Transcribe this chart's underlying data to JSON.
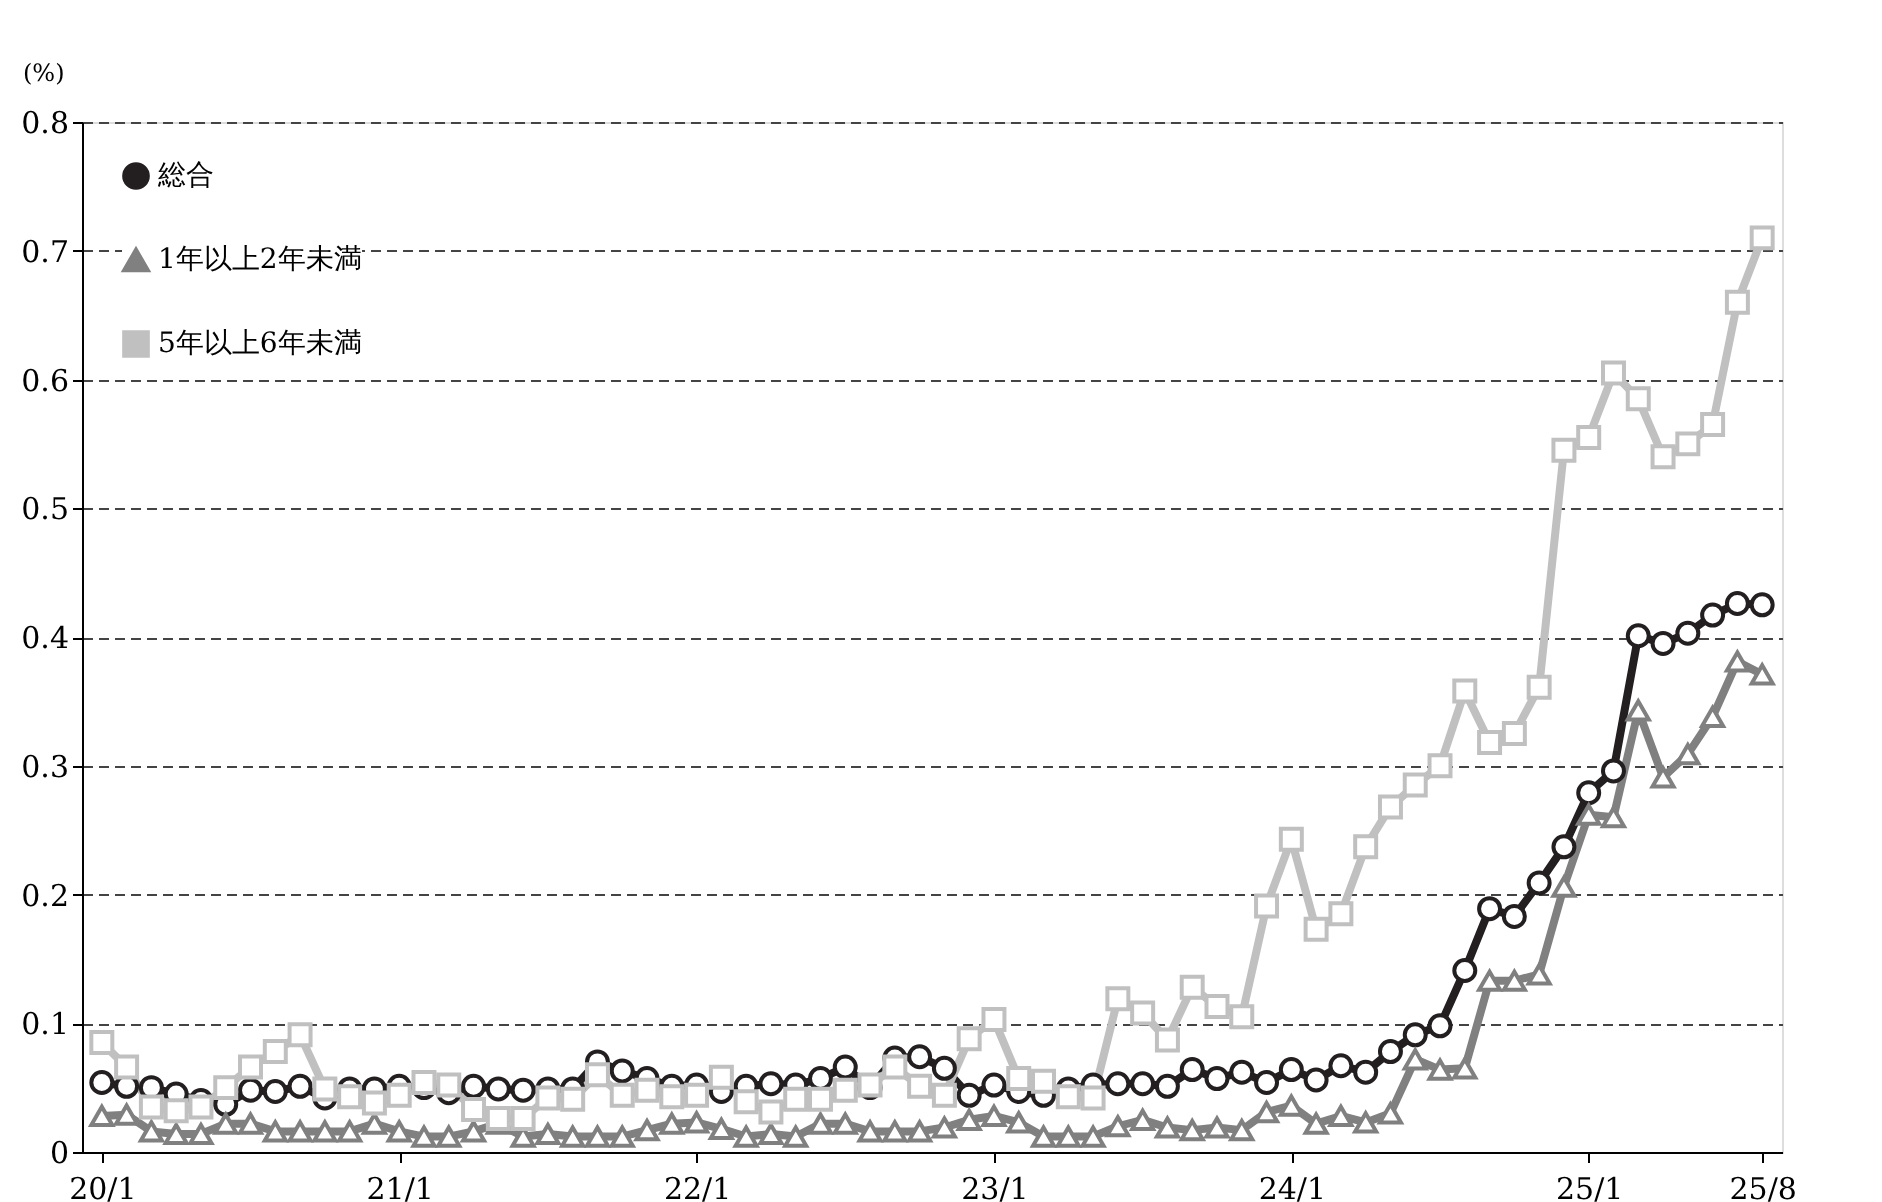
{
  "chart_data": {
    "type": "line",
    "ylabel": "(%)",
    "categories": [
      "20/1",
      null,
      null,
      null,
      null,
      null,
      null,
      null,
      null,
      null,
      null,
      null,
      "21/1",
      null,
      null,
      null,
      null,
      null,
      null,
      null,
      null,
      null,
      null,
      null,
      "22/1",
      null,
      null,
      null,
      null,
      null,
      null,
      null,
      null,
      null,
      null,
      null,
      "23/1",
      null,
      null,
      null,
      null,
      null,
      null,
      null,
      null,
      null,
      null,
      null,
      "24/1",
      null,
      null,
      null,
      null,
      null,
      null,
      null,
      null,
      null,
      null,
      null,
      "25/1",
      null,
      null,
      null,
      null,
      null,
      null,
      "25/8"
    ],
    "series": [
      {
        "name": "総合",
        "color": "#231f20",
        "marker": "circle",
        "values": [
          0.054,
          0.051,
          0.05,
          0.045,
          0.04,
          0.037,
          0.048,
          0.047,
          0.051,
          0.042,
          0.049,
          0.049,
          0.051,
          0.05,
          0.046,
          0.051,
          0.049,
          0.048,
          0.049,
          0.049,
          0.07,
          0.063,
          0.057,
          0.051,
          0.052,
          0.047,
          0.051,
          0.053,
          0.052,
          0.057,
          0.066,
          0.05,
          0.073,
          0.074,
          0.065,
          0.044,
          0.052,
          0.047,
          0.044,
          0.049,
          0.052,
          0.053,
          0.053,
          0.051,
          0.064,
          0.057,
          0.062,
          0.054,
          0.064,
          0.056,
          0.067,
          0.062,
          0.078,
          0.091,
          0.098,
          0.141,
          0.189,
          0.183,
          0.209,
          0.237,
          0.279,
          0.296,
          0.401,
          0.395,
          0.403,
          0.417,
          0.426,
          0.425
        ]
      },
      {
        "name": "1年以上2年未満",
        "color": "#808080",
        "marker": "triangle",
        "values": [
          0.028,
          0.029,
          0.016,
          0.014,
          0.014,
          0.022,
          0.022,
          0.016,
          0.016,
          0.016,
          0.016,
          0.022,
          0.016,
          0.012,
          0.012,
          0.016,
          0.022,
          0.012,
          0.014,
          0.012,
          0.012,
          0.012,
          0.017,
          0.022,
          0.023,
          0.018,
          0.012,
          0.014,
          0.012,
          0.022,
          0.022,
          0.016,
          0.016,
          0.016,
          0.019,
          0.025,
          0.028,
          0.023,
          0.012,
          0.012,
          0.012,
          0.02,
          0.025,
          0.019,
          0.017,
          0.019,
          0.017,
          0.031,
          0.036,
          0.022,
          0.028,
          0.023,
          0.03,
          0.072,
          0.064,
          0.065,
          0.133,
          0.133,
          0.138,
          0.206,
          0.262,
          0.26,
          0.343,
          0.291,
          0.309,
          0.338,
          0.381,
          0.371
        ]
      },
      {
        "name": "5年以上6年未満",
        "color": "#c0c0c0",
        "marker": "square",
        "values": [
          0.085,
          0.066,
          0.035,
          0.032,
          0.035,
          0.05,
          0.066,
          0.078,
          0.091,
          0.049,
          0.043,
          0.038,
          0.044,
          0.054,
          0.052,
          0.033,
          0.026,
          0.026,
          0.042,
          0.041,
          0.06,
          0.044,
          0.048,
          0.043,
          0.044,
          0.058,
          0.039,
          0.031,
          0.041,
          0.041,
          0.048,
          0.052,
          0.066,
          0.051,
          0.044,
          0.088,
          0.103,
          0.057,
          0.055,
          0.043,
          0.042,
          0.119,
          0.108,
          0.087,
          0.128,
          0.113,
          0.105,
          0.191,
          0.243,
          0.173,
          0.185,
          0.237,
          0.268,
          0.285,
          0.3,
          0.358,
          0.318,
          0.325,
          0.361,
          0.545,
          0.555,
          0.605,
          0.585,
          0.54,
          0.55,
          0.565,
          0.66,
          0.71
        ]
      }
    ],
    "ylim": [
      0,
      0.8
    ],
    "yticks": [
      0,
      0.1,
      0.2,
      0.3,
      0.4,
      0.5,
      0.6,
      0.7,
      0.8
    ],
    "grid": "y",
    "legend": "top left",
    "line_style": "solid"
  }
}
